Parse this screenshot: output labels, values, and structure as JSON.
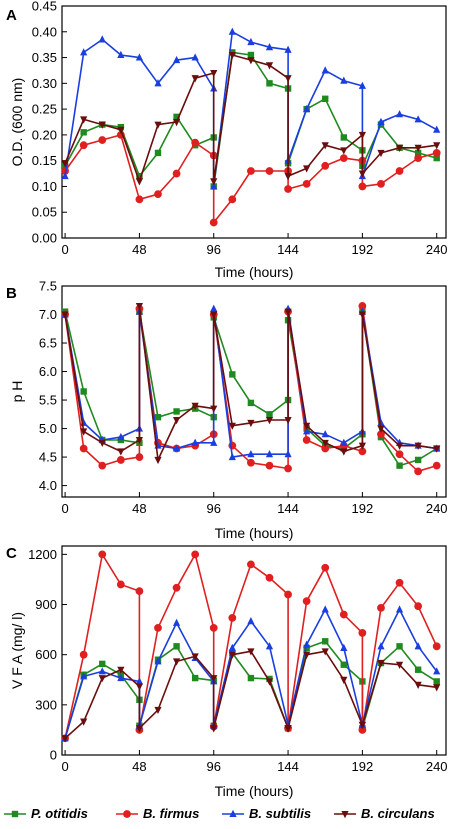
{
  "legend": [
    {
      "name": "P. otitidis",
      "color": "#1f8a1f",
      "marker": "square"
    },
    {
      "name": "B. firmus",
      "color": "#e02020",
      "marker": "circle"
    },
    {
      "name": "B. subtilis",
      "color": "#1a3ee0",
      "marker": "triangle-up"
    },
    {
      "name": "B. circulans",
      "color": "#6b0d0d",
      "marker": "triangle-down"
    }
  ],
  "chart_data": [
    {
      "panel": "A",
      "type": "line",
      "xlabel": "Time (hours)",
      "ylabel": "O.D. (600 nm)",
      "xlim": [
        -2,
        246
      ],
      "ylim": [
        0,
        0.45
      ],
      "xticks": [
        0,
        48,
        96,
        144,
        192,
        240
      ],
      "yticks": [
        0.0,
        0.05,
        0.1,
        0.15,
        0.2,
        0.25,
        0.3,
        0.35,
        0.4,
        0.45
      ],
      "ytick_decimals": 2,
      "series": [
        {
          "name": "P. otitidis",
          "x": [
            0,
            12,
            24,
            36,
            48,
            60,
            72,
            84,
            96,
            96,
            108,
            120,
            132,
            144,
            144,
            156,
            168,
            180,
            192,
            192,
            204,
            216,
            228,
            240
          ],
          "y": [
            0.14,
            0.205,
            0.22,
            0.215,
            0.12,
            0.165,
            0.235,
            0.18,
            0.195,
            0.1,
            0.36,
            0.355,
            0.3,
            0.29,
            0.145,
            0.25,
            0.27,
            0.195,
            0.17,
            0.14,
            0.22,
            0.175,
            0.165,
            0.155
          ]
        },
        {
          "name": "B. firmus",
          "x": [
            0,
            12,
            24,
            36,
            48,
            60,
            72,
            84,
            96,
            96,
            108,
            120,
            132,
            144,
            144,
            156,
            168,
            180,
            192,
            192,
            204,
            216,
            228,
            240
          ],
          "y": [
            0.13,
            0.18,
            0.19,
            0.2,
            0.075,
            0.085,
            0.125,
            0.185,
            0.16,
            0.03,
            0.075,
            0.13,
            0.13,
            0.13,
            0.095,
            0.105,
            0.14,
            0.155,
            0.15,
            0.1,
            0.105,
            0.13,
            0.155,
            0.165
          ]
        },
        {
          "name": "B. subtilis",
          "x": [
            0,
            12,
            24,
            36,
            48,
            60,
            72,
            84,
            96,
            96,
            108,
            120,
            132,
            144,
            144,
            156,
            168,
            180,
            192,
            192,
            204,
            216,
            228,
            240
          ],
          "y": [
            0.12,
            0.36,
            0.385,
            0.355,
            0.35,
            0.3,
            0.345,
            0.35,
            0.29,
            0.1,
            0.4,
            0.38,
            0.37,
            0.365,
            0.15,
            0.25,
            0.325,
            0.305,
            0.295,
            0.12,
            0.225,
            0.24,
            0.23,
            0.21
          ]
        },
        {
          "name": "B. circulans",
          "x": [
            0,
            12,
            24,
            36,
            48,
            60,
            72,
            84,
            96,
            96,
            108,
            120,
            132,
            144,
            144,
            156,
            168,
            180,
            192,
            192,
            204,
            216,
            228,
            240
          ],
          "y": [
            0.145,
            0.23,
            0.22,
            0.21,
            0.11,
            0.22,
            0.225,
            0.31,
            0.32,
            0.11,
            0.355,
            0.345,
            0.335,
            0.31,
            0.12,
            0.135,
            0.18,
            0.17,
            0.2,
            0.125,
            0.165,
            0.175,
            0.175,
            0.18
          ]
        }
      ]
    },
    {
      "panel": "B",
      "type": "line",
      "xlabel": "Time (hours)",
      "ylabel": "p H",
      "xlim": [
        -2,
        246
      ],
      "ylim": [
        3.8,
        7.5
      ],
      "xticks": [
        0,
        48,
        96,
        144,
        192,
        240
      ],
      "yticks": [
        4.0,
        4.5,
        5.0,
        5.5,
        6.0,
        6.5,
        7.0,
        7.5
      ],
      "ytick_decimals": 1,
      "series": [
        {
          "name": "P. otitidis",
          "x": [
            0,
            12,
            24,
            36,
            48,
            48,
            60,
            72,
            84,
            96,
            96,
            108,
            120,
            132,
            144,
            144,
            156,
            168,
            180,
            192,
            192,
            204,
            216,
            228,
            240
          ],
          "y": [
            7.05,
            5.65,
            4.8,
            4.8,
            4.75,
            7.05,
            5.2,
            5.3,
            5.35,
            5.2,
            6.95,
            5.95,
            5.45,
            5.25,
            5.5,
            6.9,
            5.0,
            4.7,
            4.65,
            4.9,
            7.05,
            4.85,
            4.35,
            4.45,
            4.65
          ]
        },
        {
          "name": "B. firmus",
          "x": [
            0,
            12,
            24,
            36,
            48,
            48,
            60,
            72,
            84,
            96,
            96,
            108,
            120,
            132,
            144,
            144,
            156,
            168,
            180,
            192,
            192,
            204,
            216,
            228,
            240
          ],
          "y": [
            7.0,
            4.65,
            4.35,
            4.45,
            4.5,
            7.1,
            4.75,
            4.65,
            4.7,
            4.9,
            7.0,
            4.7,
            4.4,
            4.35,
            4.3,
            7.05,
            4.8,
            4.65,
            4.7,
            4.6,
            7.15,
            4.9,
            4.55,
            4.25,
            4.35
          ]
        },
        {
          "name": "B. subtilis",
          "x": [
            0,
            12,
            24,
            36,
            48,
            48,
            60,
            72,
            84,
            96,
            96,
            108,
            120,
            132,
            144,
            144,
            156,
            168,
            180,
            192,
            192,
            204,
            216,
            228,
            240
          ],
          "y": [
            7.0,
            5.1,
            4.8,
            4.85,
            5.0,
            7.05,
            4.7,
            4.65,
            4.75,
            4.75,
            7.1,
            4.5,
            4.55,
            4.55,
            4.55,
            7.1,
            4.95,
            4.9,
            4.75,
            4.95,
            7.05,
            5.1,
            4.75,
            4.7,
            4.65
          ]
        },
        {
          "name": "B. circulans",
          "x": [
            0,
            12,
            24,
            36,
            48,
            48,
            60,
            72,
            84,
            96,
            96,
            108,
            120,
            132,
            144,
            144,
            156,
            168,
            180,
            192,
            192,
            204,
            216,
            228,
            240
          ],
          "y": [
            7.0,
            4.95,
            4.75,
            4.6,
            4.8,
            7.15,
            4.45,
            5.15,
            5.4,
            5.35,
            7.0,
            5.05,
            5.1,
            5.15,
            5.15,
            7.05,
            5.05,
            4.75,
            4.6,
            4.7,
            7.0,
            5.0,
            4.7,
            4.7,
            4.65
          ]
        }
      ]
    },
    {
      "panel": "C",
      "type": "line",
      "xlabel": "Time (hours)",
      "ylabel": "V F A  (mg/ l)",
      "xlim": [
        -2,
        246
      ],
      "ylim": [
        0,
        1250
      ],
      "xticks": [
        0,
        48,
        96,
        144,
        192,
        240
      ],
      "yticks": [
        0,
        300,
        600,
        900,
        1200
      ],
      "ytick_decimals": 0,
      "series": [
        {
          "name": "P. otitidis",
          "x": [
            0,
            12,
            24,
            36,
            48,
            48,
            60,
            72,
            84,
            96,
            96,
            108,
            120,
            132,
            144,
            144,
            156,
            168,
            180,
            192,
            192,
            204,
            216,
            228,
            240
          ],
          "y": [
            100,
            480,
            545,
            480,
            330,
            175,
            570,
            650,
            460,
            445,
            175,
            610,
            460,
            455,
            160,
            160,
            640,
            680,
            540,
            440,
            160,
            550,
            650,
            510,
            440
          ]
        },
        {
          "name": "B. firmus",
          "x": [
            0,
            12,
            24,
            36,
            48,
            48,
            60,
            72,
            84,
            96,
            96,
            108,
            120,
            132,
            144,
            144,
            156,
            168,
            180,
            192,
            192,
            204,
            216,
            228,
            240
          ],
          "y": [
            100,
            600,
            1200,
            1020,
            980,
            150,
            760,
            1000,
            1200,
            760,
            170,
            820,
            1140,
            1060,
            960,
            160,
            920,
            1120,
            840,
            730,
            150,
            880,
            1030,
            890,
            650
          ]
        },
        {
          "name": "B. subtilis",
          "x": [
            0,
            12,
            24,
            36,
            48,
            48,
            60,
            72,
            84,
            96,
            96,
            108,
            120,
            132,
            144,
            144,
            156,
            168,
            180,
            192,
            192,
            204,
            216,
            228,
            240
          ],
          "y": [
            100,
            470,
            500,
            460,
            440,
            175,
            560,
            790,
            580,
            440,
            175,
            640,
            800,
            650,
            180,
            180,
            660,
            870,
            640,
            180,
            180,
            650,
            870,
            650,
            500
          ]
        },
        {
          "name": "B. circulans",
          "x": [
            0,
            12,
            24,
            36,
            48,
            48,
            60,
            72,
            84,
            96,
            96,
            108,
            120,
            132,
            144,
            144,
            156,
            168,
            180,
            192,
            192,
            204,
            216,
            228,
            240
          ],
          "y": [
            100,
            200,
            460,
            510,
            410,
            160,
            270,
            560,
            590,
            460,
            160,
            600,
            620,
            440,
            160,
            160,
            600,
            620,
            450,
            180,
            180,
            550,
            540,
            420,
            405
          ]
        }
      ]
    }
  ]
}
